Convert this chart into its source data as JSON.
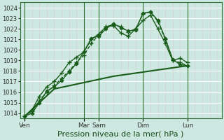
{
  "bg_color": "#cce8e0",
  "grid_color": "#ffffff",
  "line_color": "#1a5c1a",
  "xlabel": "Pression niveau de la mer( hPa )",
  "xlabel_fontsize": 8,
  "ylim": [
    1013.5,
    1024.5
  ],
  "yticks": [
    1014,
    1015,
    1016,
    1017,
    1018,
    1019,
    1020,
    1021,
    1022,
    1023,
    1024
  ],
  "xlim": [
    -0.3,
    13.3
  ],
  "xtick_labels": [
    "Ven",
    "Mar",
    "Sam",
    "Dim",
    "Lun"
  ],
  "xtick_positions": [
    0,
    4,
    5,
    8,
    11
  ],
  "vlines": [
    0,
    4,
    5,
    8,
    11
  ],
  "minor_vlines_color": "#c8dcd6",
  "series": [
    {
      "x": [
        0,
        0.5,
        1.0,
        1.5,
        2.0,
        2.5,
        3.0,
        3.5,
        4.0,
        4.5,
        5.0,
        5.5,
        6.0,
        6.5,
        7.0,
        7.5,
        8.0,
        8.5,
        9.0,
        9.5,
        10.0,
        10.5,
        11.0
      ],
      "y": [
        1013.7,
        1014.2,
        1015.2,
        1016.0,
        1016.6,
        1017.3,
        1018.0,
        1018.8,
        1019.5,
        1020.6,
        1021.4,
        1022.2,
        1022.4,
        1022.2,
        1021.7,
        1022.0,
        1023.4,
        1023.6,
        1022.7,
        1021.0,
        1019.0,
        1018.8,
        1018.5
      ],
      "marker": "+",
      "markersize": 4,
      "markeredgewidth": 1.0,
      "linewidth": 1.0,
      "linestyle": "--"
    },
    {
      "x": [
        0,
        0.5,
        1.0,
        1.5,
        2.0,
        2.5,
        3.0,
        3.5,
        4.0,
        4.5,
        5.0,
        5.5,
        6.0,
        6.5,
        7.0,
        7.5,
        8.0,
        8.5,
        9.0,
        9.5,
        10.0,
        10.5,
        11.0
      ],
      "y": [
        1013.7,
        1014.3,
        1015.6,
        1016.5,
        1017.0,
        1017.8,
        1018.8,
        1019.3,
        1019.8,
        1021.0,
        1021.5,
        1022.2,
        1022.3,
        1021.6,
        1021.3,
        1022.0,
        1022.8,
        1023.3,
        1022.0,
        1020.6,
        1019.0,
        1019.2,
        1018.8
      ],
      "marker": "+",
      "markersize": 4,
      "markeredgewidth": 1.0,
      "linewidth": 1.0,
      "linestyle": "-"
    },
    {
      "x": [
        0,
        0.5,
        1.0,
        1.5,
        2.0,
        2.5,
        3.0,
        3.5,
        4.0,
        4.5,
        5.0,
        5.5,
        6.0,
        6.5,
        7.0,
        7.5,
        8.0,
        8.5,
        9.0,
        9.5,
        10.0,
        10.5,
        11.0
      ],
      "y": [
        1013.7,
        1014.0,
        1015.0,
        1016.1,
        1016.5,
        1017.1,
        1017.9,
        1018.7,
        1019.8,
        1021.1,
        1021.3,
        1022.0,
        1022.5,
        1022.1,
        1021.8,
        1021.9,
        1023.5,
        1023.6,
        1022.8,
        1021.1,
        1019.1,
        1018.6,
        1018.5
      ],
      "marker": "D",
      "markersize": 2.5,
      "markeredgewidth": 0.8,
      "linewidth": 1.0,
      "linestyle": "-"
    },
    {
      "x": [
        0,
        1.0,
        2.0,
        3.0,
        4.0,
        5.0,
        6.0,
        7.0,
        8.0,
        9.0,
        10.0,
        11.0
      ],
      "y": [
        1013.7,
        1015.0,
        1016.3,
        1016.6,
        1016.9,
        1017.2,
        1017.5,
        1017.7,
        1017.9,
        1018.1,
        1018.3,
        1018.5
      ],
      "marker": "None",
      "markersize": 0,
      "markeredgewidth": 0,
      "linewidth": 1.5,
      "linestyle": "-"
    }
  ]
}
